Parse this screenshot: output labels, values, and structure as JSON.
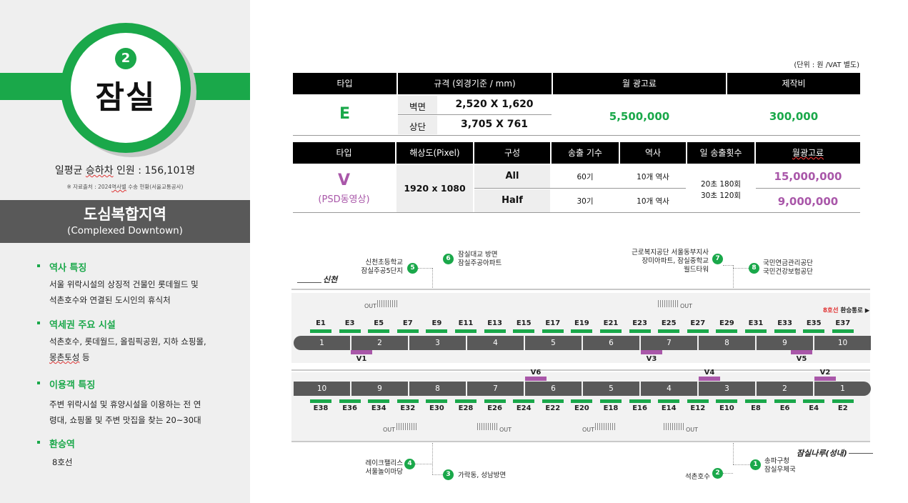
{
  "station": {
    "line_number": "2",
    "name": "잠실",
    "riders_prefix": "일평균 ",
    "riders_underlined": "승하차",
    "riders_suffix": " 인원 : 156,101명",
    "source_prefix": "※ 자료출처 : 2024",
    "source_underlined": "역사별",
    "source_suffix": " 수송 현황(서울교통공사)",
    "district_ko": "도심복합지역",
    "district_en": "(Complexed Downtown)"
  },
  "features": [
    {
      "heading": "역사 특징",
      "lines": [
        "서울 위락시설의 상징적 건물인 롯데월드 및",
        "석촌호수와 연결된 도시인의 휴식처"
      ]
    },
    {
      "heading": "역세권 주요 시설",
      "lines": [
        "석촌호수, 롯데월드, 올림픽공원, 지하 쇼핑몰,"
      ],
      "line2_underlined": "몽촌토성",
      "line2_suffix": " 등"
    },
    {
      "heading": "이용객 특징",
      "lines": [
        "주변 위락시설 및 휴양시설을 이용하는 전 연",
        "령대, 쇼핑몰 및 주변 맛집을 찾는 20~30대"
      ]
    },
    {
      "heading": "환승역",
      "lines": [
        "8호선"
      ]
    }
  ],
  "unit_note": "(단위 : 원 /VAT 별도)",
  "table1": {
    "headers": [
      "타입",
      "규격 (외경기준 / mm)",
      "월 광고료",
      "제작비"
    ],
    "type": "E",
    "rows": [
      {
        "label": "벽면",
        "size": "2,520 X 1,620"
      },
      {
        "label": "상단",
        "size": "3,705 X 761"
      }
    ],
    "monthly_fee": "5,500,000",
    "production_fee": "300,000"
  },
  "table2": {
    "headers": [
      "타입",
      "해상도(Pixel)",
      "구성",
      "송출 기수",
      "역사",
      "일 송출횟수",
      "월광고료"
    ],
    "type": "V",
    "type_sub": "(PSD동영상)",
    "resolution": "1920 x 1080",
    "rows": [
      {
        "config": "All",
        "count": "60기",
        "station": "10개 역사",
        "fee": "15,000,000"
      },
      {
        "config": "Half",
        "count": "30기",
        "station": "10개 역사",
        "fee": "9,000,000"
      }
    ],
    "daily_1": "20초 180회",
    "daily_2": "30초 120회"
  },
  "map": {
    "dir_left": "신천",
    "dir_right": "잠실나루(성내)",
    "transfer_red": "8호선",
    "transfer_rest": " 환승통로 ▶",
    "out_label": "OUT",
    "top_cars": [
      "1",
      "2",
      "3",
      "4",
      "5",
      "6",
      "7",
      "8",
      "9",
      "10"
    ],
    "bottom_cars": [
      "10",
      "9",
      "8",
      "7",
      "6",
      "5",
      "4",
      "3",
      "2",
      "1"
    ],
    "top_e": [
      "E1",
      "E3",
      "E5",
      "E7",
      "E9",
      "E11",
      "E13",
      "E15",
      "E17",
      "E19",
      "E21",
      "E23",
      "E25",
      "E27",
      "E29",
      "E31",
      "E33",
      "E35",
      "E37"
    ],
    "bottom_e": [
      "E38",
      "E36",
      "E34",
      "E32",
      "E30",
      "E28",
      "E26",
      "E24",
      "E22",
      "E20",
      "E18",
      "E16",
      "E14",
      "E12",
      "E10",
      "E8",
      "E6",
      "E4",
      "E2"
    ],
    "top_v": [
      "V1",
      "V3",
      "V5"
    ],
    "bottom_v": [
      "V6",
      "V4",
      "V2"
    ],
    "exits": [
      {
        "no": "5",
        "text1": "신천초등학교",
        "text2": "잠실주공5단지"
      },
      {
        "no": "6",
        "text1": "잠실대교 방면",
        "text2": "잠실주공아파트"
      },
      {
        "no": "7",
        "text1": "근로복지공단 서울동부지사",
        "text2": "장미아파트, 잠실중학교",
        "text3": "월드타워"
      },
      {
        "no": "8",
        "text1": "국민연금관리공단",
        "text2": "국민건강보험공단"
      },
      {
        "no": "4",
        "text1": "레이크팰리스",
        "text2": "서울놀이마당"
      },
      {
        "no": "3",
        "text1": "가락동, 성남방면"
      },
      {
        "no": "2",
        "text1": "석촌호수"
      },
      {
        "no": "1",
        "text1": "송파구청",
        "text2": "잠실우체국"
      }
    ]
  },
  "colors": {
    "green": "#1aa84a",
    "purple": "#a957a9",
    "dark": "#595959"
  }
}
